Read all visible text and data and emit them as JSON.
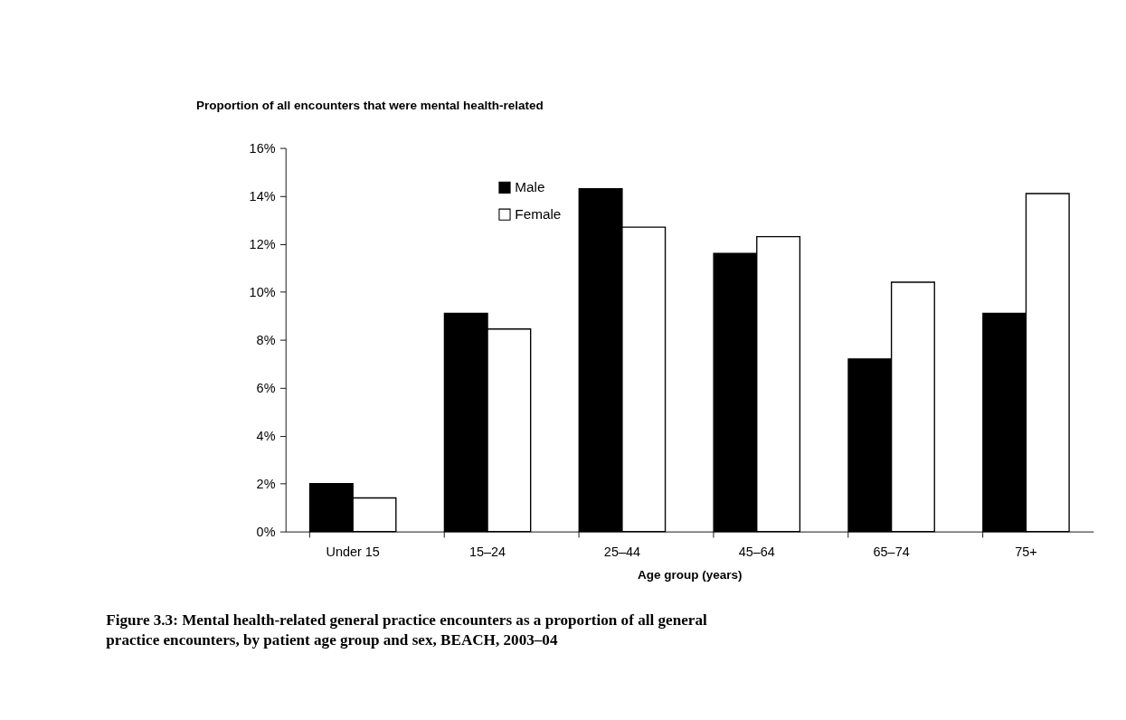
{
  "chart_data": {
    "type": "bar",
    "ylabel": "Proportion of all encounters that were mental health-related",
    "xlabel": "Age group (years)",
    "categories": [
      "Under 15",
      "15–24",
      "25–44",
      "45–64",
      "65–74",
      "75+"
    ],
    "series": [
      {
        "name": "Male",
        "color": "#000000",
        "values": [
          2.0,
          9.1,
          14.3,
          11.6,
          7.2,
          9.1
        ]
      },
      {
        "name": "Female",
        "color": "#ffffff",
        "values": [
          1.4,
          8.45,
          12.7,
          12.3,
          10.4,
          14.1
        ]
      }
    ],
    "ylim": [
      0,
      16
    ],
    "yticks": [
      {
        "value": 0,
        "label": "0%"
      },
      {
        "value": 2,
        "label": "2%"
      },
      {
        "value": 4,
        "label": "4%"
      },
      {
        "value": 6,
        "label": "6%"
      },
      {
        "value": 8,
        "label": "8%"
      },
      {
        "value": 10,
        "label": "10%"
      },
      {
        "value": 12,
        "label": "12%"
      },
      {
        "value": 14,
        "label": "14%"
      },
      {
        "value": 16,
        "label": "16%"
      }
    ],
    "grid": false,
    "legend": "top left",
    "annotations": [
      "Figure 3.3: Mental health-related general practice encounters as a proportion of all general practice encounters, by patient age group and sex, BEACH, 2003–04"
    ]
  }
}
